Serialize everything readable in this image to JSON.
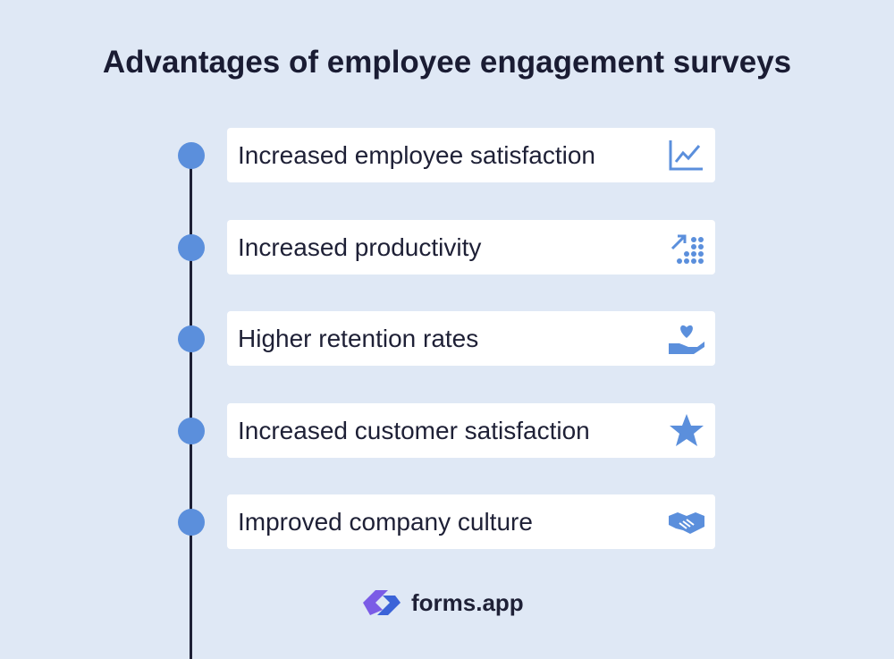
{
  "title": "Advantages of employee engagement surveys",
  "items": [
    {
      "label": "Increased employee satisfaction"
    },
    {
      "label": "Increased productivity"
    },
    {
      "label": "Higher retention rates"
    },
    {
      "label": "Increased customer satisfaction"
    },
    {
      "label": "Improved company culture"
    }
  ],
  "brand": "forms.app"
}
